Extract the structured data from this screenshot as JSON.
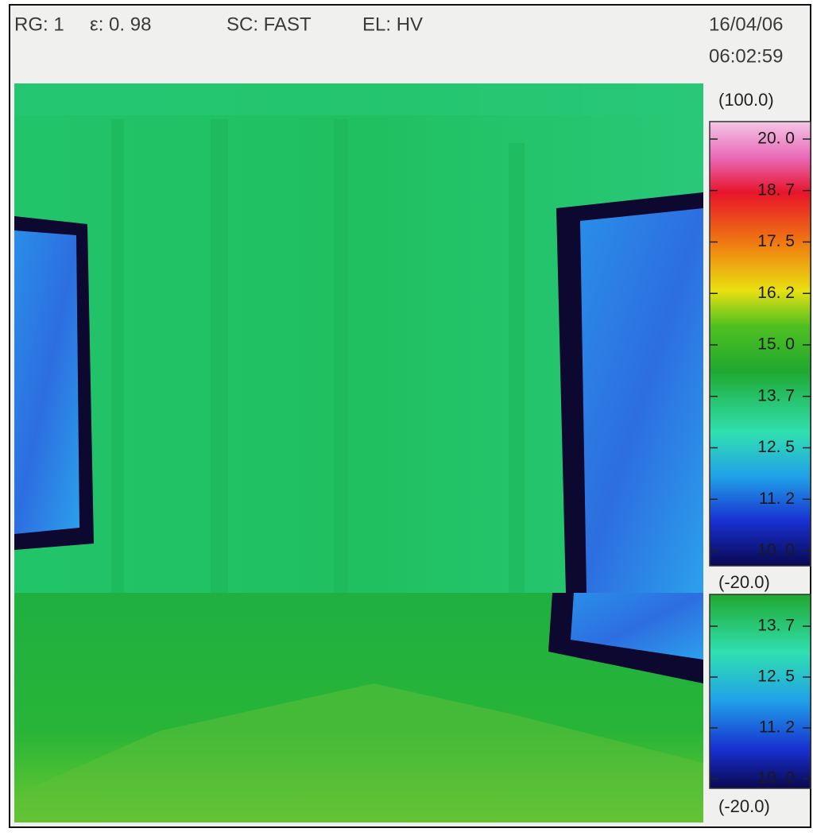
{
  "header": {
    "range": "RG: 1",
    "emissivity": "ε: 0. 98",
    "scan": "SC: FAST",
    "element": "EL: HV",
    "date": "16/04/06",
    "time": "06:02:59"
  },
  "scales": [
    {
      "max": "(100.0)",
      "labels": [
        "20. 0",
        "18. 7",
        "17. 5",
        "16. 2",
        "15. 0",
        "13. 7",
        "12. 5",
        "11. 2",
        "10. 0"
      ],
      "min": "(-20.0)"
    },
    {
      "labels": [
        "13. 7",
        "12. 5",
        "11. 2",
        "10. 0"
      ],
      "min": "(-20.0)"
    }
  ]
}
